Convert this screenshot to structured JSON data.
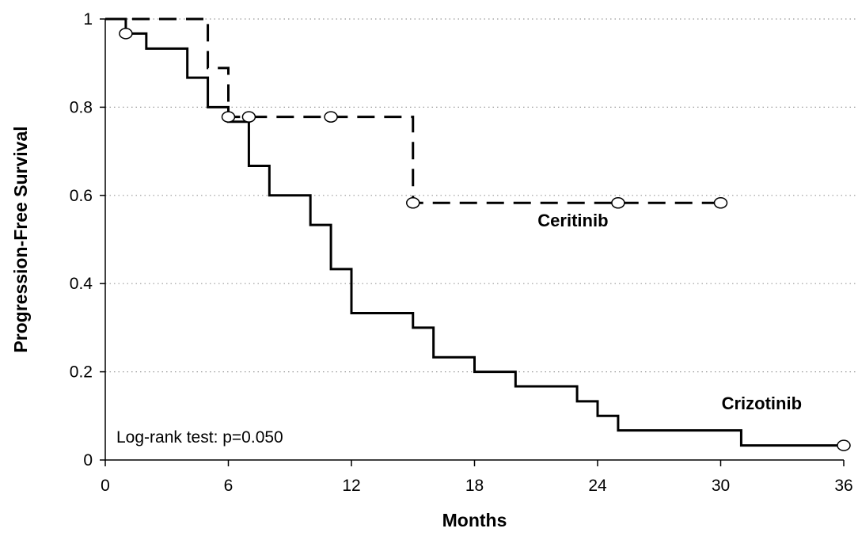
{
  "chart_data": {
    "type": "line",
    "step": true,
    "xlabel": "Months",
    "ylabel": "Progression-Free Survival",
    "xlim": [
      0,
      36
    ],
    "ylim": [
      0,
      1
    ],
    "xticks": [
      0,
      6,
      12,
      18,
      24,
      30,
      36
    ],
    "yticks": [
      0,
      0.2,
      0.4,
      0.6,
      0.8,
      1
    ],
    "ytick_labels": [
      "0",
      "0.2",
      "0.4",
      "0.6",
      "0.8",
      "1"
    ],
    "grid": "horizontal-dotted",
    "annotation": "Log-rank test: p=0.050",
    "series": [
      {
        "name": "Ceritinib",
        "style": "dashed",
        "color": "#000000",
        "steps": [
          [
            0,
            1.0
          ],
          [
            5,
            0.889
          ],
          [
            6,
            0.778
          ],
          [
            15,
            0.583
          ],
          [
            30,
            0.583
          ]
        ],
        "censored": [
          [
            6,
            0.778
          ],
          [
            7,
            0.778
          ],
          [
            11,
            0.778
          ],
          [
            15,
            0.583
          ],
          [
            25,
            0.583
          ],
          [
            30,
            0.583
          ]
        ]
      },
      {
        "name": "Crizotinib",
        "style": "solid",
        "color": "#000000",
        "steps": [
          [
            0,
            1.0
          ],
          [
            1,
            0.967
          ],
          [
            2,
            0.933
          ],
          [
            4,
            0.867
          ],
          [
            5,
            0.8
          ],
          [
            6,
            0.767
          ],
          [
            7,
            0.667
          ],
          [
            8,
            0.6
          ],
          [
            10,
            0.533
          ],
          [
            11,
            0.433
          ],
          [
            12,
            0.333
          ],
          [
            15,
            0.3
          ],
          [
            16,
            0.233
          ],
          [
            18,
            0.2
          ],
          [
            20,
            0.167
          ],
          [
            23,
            0.133
          ],
          [
            24,
            0.1
          ],
          [
            25,
            0.067
          ],
          [
            31,
            0.033
          ],
          [
            36,
            0.033
          ]
        ],
        "censored": [
          [
            1,
            0.967
          ],
          [
            36,
            0.033
          ]
        ]
      }
    ]
  }
}
